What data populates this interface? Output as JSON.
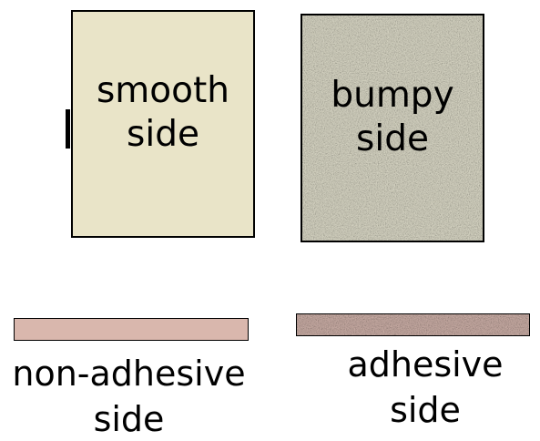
{
  "panels": {
    "smooth": {
      "line1": "smooth",
      "line2": "side",
      "fill": "#e9e4c8",
      "texture": "smooth"
    },
    "bumpy": {
      "line1": "bumpy",
      "line2": "side",
      "fill": "#dcdac8",
      "texture": "speckled"
    }
  },
  "strips": {
    "non_adhesive": {
      "line1": "non-adhesive",
      "line2": "side",
      "fill": "#d9b7ad",
      "texture": "smooth"
    },
    "adhesive": {
      "line1": "adhesive",
      "line2": "side",
      "fill": "#cdb0a8",
      "texture": "speckled"
    }
  }
}
